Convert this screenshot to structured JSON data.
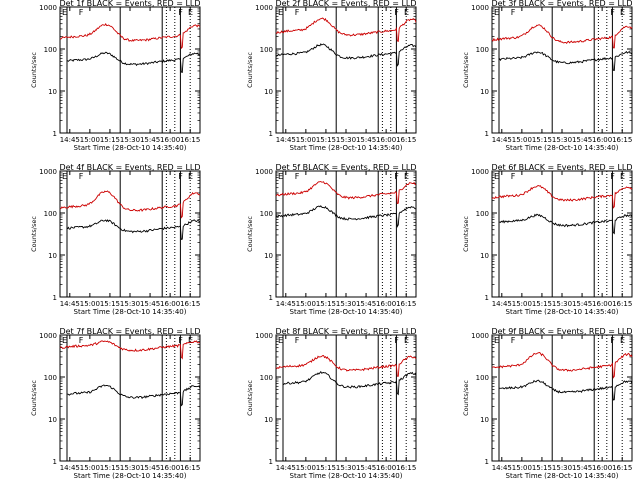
{
  "colors": {
    "events": "#000000",
    "lld": "#cc0000",
    "axes": "#000000",
    "background": "#ffffff"
  },
  "figure": {
    "ylabel": "Counts/sec",
    "xlabel": "Start Time (28-Oct-10 14:35:40)",
    "xticks": [
      "14:45",
      "15:00",
      "15:15",
      "15:30",
      "15:45",
      "16:00",
      "16:15"
    ],
    "yticks": [
      "1",
      "10",
      "100",
      "1000"
    ]
  },
  "chart_data": [
    {
      "type": "line",
      "title": "Det 1f BLACK = Events, RED = LLD",
      "flags": [
        "E",
        "F",
        "F",
        "E"
      ],
      "xlim_min": [
        0,
        100
      ],
      "ylim": [
        1,
        1000
      ],
      "y_scale": "log",
      "series": [
        {
          "name": "Events",
          "color": "#000000",
          "approx_level": 60,
          "hump_peak": 90,
          "start_min": 5
        },
        {
          "name": "LLD",
          "color": "#cc0000",
          "approx_level": 220,
          "hump_peak": 420
        }
      ]
    },
    {
      "type": "line",
      "title": "Det 2f BLACK = Events, RED = LLD",
      "flags": [
        "E",
        "F",
        "F",
        "E"
      ],
      "xlim_min": [
        0,
        100
      ],
      "ylim": [
        1,
        1000
      ],
      "y_scale": "log",
      "series": [
        {
          "name": "Events",
          "color": "#000000",
          "approx_level": 85,
          "hump_peak": 140,
          "start_min": 0
        },
        {
          "name": "LLD",
          "color": "#cc0000",
          "approx_level": 300,
          "hump_peak": 580
        }
      ]
    },
    {
      "type": "line",
      "title": "Det 3f BLACK = Events, RED = LLD",
      "flags": [
        "E",
        "F",
        "F",
        "E"
      ],
      "xlim_min": [
        0,
        100
      ],
      "ylim": [
        1,
        1000
      ],
      "y_scale": "log",
      "series": [
        {
          "name": "Events",
          "color": "#000000",
          "approx_level": 65,
          "hump_peak": 95,
          "start_min": 5
        },
        {
          "name": "LLD",
          "color": "#cc0000",
          "approx_level": 200,
          "hump_peak": 400
        }
      ]
    },
    {
      "type": "line",
      "title": "Det 4f BLACK = Events, RED = LLD",
      "flags": [
        "E",
        "F",
        "F",
        "E"
      ],
      "xlim_min": [
        0,
        100
      ],
      "ylim": [
        1,
        1000
      ],
      "y_scale": "log",
      "series": [
        {
          "name": "Events",
          "color": "#000000",
          "approx_level": 50,
          "hump_peak": 75,
          "start_min": 5
        },
        {
          "name": "LLD",
          "color": "#cc0000",
          "approx_level": 160,
          "hump_peak": 350
        }
      ]
    },
    {
      "type": "line",
      "title": "Det 5f BLACK = Events, RED = LLD",
      "flags": [
        "E",
        "F",
        "F",
        "E"
      ],
      "xlim_min": [
        0,
        100
      ],
      "ylim": [
        1,
        1000
      ],
      "y_scale": "log",
      "series": [
        {
          "name": "Events",
          "color": "#000000",
          "approx_level": 100,
          "hump_peak": 160,
          "start_min": 0
        },
        {
          "name": "LLD",
          "color": "#cc0000",
          "approx_level": 320,
          "hump_peak": 600
        }
      ]
    },
    {
      "type": "line",
      "title": "Det 6f BLACK = Events, RED = LLD",
      "flags": [
        "E",
        "F",
        "F",
        "E"
      ],
      "xlim_min": [
        0,
        100
      ],
      "ylim": [
        1,
        1000
      ],
      "y_scale": "log",
      "series": [
        {
          "name": "Events",
          "color": "#000000",
          "approx_level": 70,
          "hump_peak": 100,
          "start_min": 5
        },
        {
          "name": "LLD",
          "color": "#cc0000",
          "approx_level": 280,
          "hump_peak": 480
        }
      ]
    },
    {
      "type": "line",
      "title": "Det 7f BLACK = Events, RED = LLD",
      "flags": [
        "E",
        "F",
        "F",
        "E"
      ],
      "xlim_min": [
        0,
        100
      ],
      "ylim": [
        1,
        1000
      ],
      "y_scale": "log",
      "series": [
        {
          "name": "Events",
          "color": "#000000",
          "approx_level": 45,
          "hump_peak": 70,
          "start_min": 5
        },
        {
          "name": "LLD",
          "color": "#cc0000",
          "approx_level": 600,
          "hump_peak": 800
        }
      ]
    },
    {
      "type": "line",
      "title": "Det 8f BLACK = Events, RED = LLD",
      "flags": [
        "E",
        "F",
        "F",
        "E"
      ],
      "xlim_min": [
        0,
        100
      ],
      "ylim": [
        1,
        1000
      ],
      "y_scale": "log",
      "series": [
        {
          "name": "Events",
          "color": "#000000",
          "approx_level": 80,
          "hump_peak": 140,
          "start_min": 5
        },
        {
          "name": "LLD",
          "color": "#cc0000",
          "approx_level": 200,
          "hump_peak": 350
        }
      ]
    },
    {
      "type": "line",
      "title": "Det 9f BLACK = Events, RED = LLD",
      "flags": [
        "E",
        "F",
        "F",
        "E"
      ],
      "xlim_min": [
        0,
        100
      ],
      "ylim": [
        1,
        1000
      ],
      "y_scale": "log",
      "series": [
        {
          "name": "Events",
          "color": "#000000",
          "approx_level": 60,
          "hump_peak": 90,
          "start_min": 5
        },
        {
          "name": "LLD",
          "color": "#cc0000",
          "approx_level": 200,
          "hump_peak": 400
        }
      ]
    }
  ]
}
